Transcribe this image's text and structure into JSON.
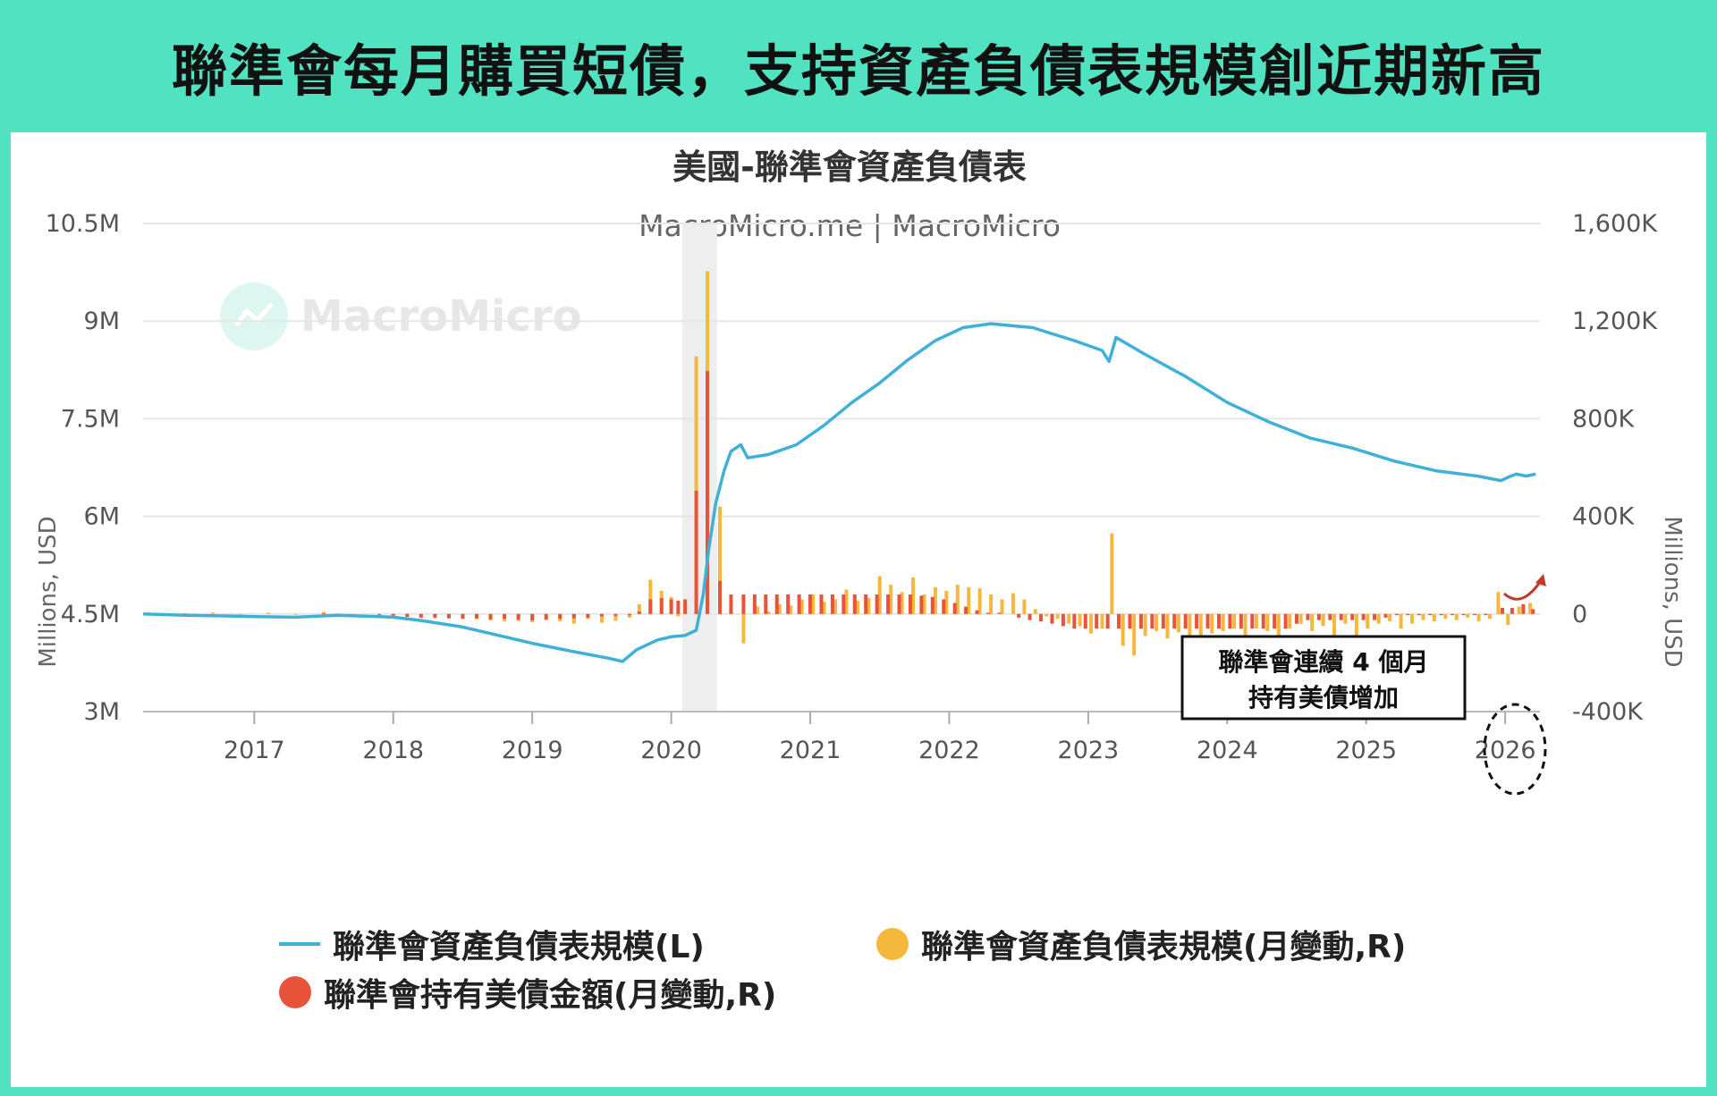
{
  "banner": {
    "title": "聯準會每月購買短債，支持資產負債表規模創近期新高"
  },
  "colors": {
    "banner_bg": "#51e3c1",
    "line": "#3fb0d8",
    "yellow": "#f5b83d",
    "red": "#e8533c",
    "recession": "#eeeeee",
    "grid": "#e6e6e6"
  },
  "watermark": "MacroMicro",
  "annotation": {
    "line1": "聯準會連續 4 個月",
    "line2": "持有美債增加"
  },
  "chart_data": {
    "type": "line+bar",
    "title": "美國-聯準會資產負債表",
    "subtitle": "MacroMicro.me | MacroMicro",
    "ylabel_left": "Millions, USD",
    "ylabel_right": "Millions, USD",
    "ylim_left": [
      3000000,
      10500000
    ],
    "ylim_right": [
      -400000,
      1600000
    ],
    "xlim": [
      2016.2,
      2026.25
    ],
    "left_ticks": [
      "3M",
      "4.5M",
      "6M",
      "7.5M",
      "9M",
      "10.5M"
    ],
    "right_ticks": [
      "-400K",
      "0",
      "400K",
      "800K",
      "1,200K",
      "1,600K"
    ],
    "x_ticks": [
      "2017",
      "2018",
      "2019",
      "2020",
      "2021",
      "2022",
      "2023",
      "2024",
      "2025",
      "2026"
    ],
    "grid": true,
    "legend_placement": "bottom",
    "recession_band": [
      2020.08,
      2020.33
    ],
    "series": [
      {
        "name": "聯準會資產負債表規模(L)",
        "kind": "line",
        "axis": "left",
        "points": [
          [
            2016.2,
            4500000
          ],
          [
            2016.5,
            4480000
          ],
          [
            2016.8,
            4470000
          ],
          [
            2017.0,
            4460000
          ],
          [
            2017.3,
            4450000
          ],
          [
            2017.6,
            4480000
          ],
          [
            2017.9,
            4460000
          ],
          [
            2018.0,
            4450000
          ],
          [
            2018.2,
            4400000
          ],
          [
            2018.5,
            4300000
          ],
          [
            2018.8,
            4150000
          ],
          [
            2019.0,
            4050000
          ],
          [
            2019.3,
            3920000
          ],
          [
            2019.55,
            3820000
          ],
          [
            2019.65,
            3770000
          ],
          [
            2019.75,
            3950000
          ],
          [
            2019.9,
            4100000
          ],
          [
            2020.0,
            4150000
          ],
          [
            2020.1,
            4170000
          ],
          [
            2020.18,
            4250000
          ],
          [
            2020.23,
            4800000
          ],
          [
            2020.27,
            5500000
          ],
          [
            2020.32,
            6200000
          ],
          [
            2020.38,
            6700000
          ],
          [
            2020.43,
            7000000
          ],
          [
            2020.5,
            7100000
          ],
          [
            2020.55,
            6900000
          ],
          [
            2020.7,
            6950000
          ],
          [
            2020.9,
            7100000
          ],
          [
            2021.1,
            7400000
          ],
          [
            2021.3,
            7750000
          ],
          [
            2021.5,
            8050000
          ],
          [
            2021.7,
            8400000
          ],
          [
            2021.9,
            8700000
          ],
          [
            2022.1,
            8900000
          ],
          [
            2022.3,
            8960000
          ],
          [
            2022.6,
            8900000
          ],
          [
            2022.9,
            8700000
          ],
          [
            2023.1,
            8550000
          ],
          [
            2023.15,
            8380000
          ],
          [
            2023.2,
            8750000
          ],
          [
            2023.4,
            8500000
          ],
          [
            2023.7,
            8150000
          ],
          [
            2024.0,
            7750000
          ],
          [
            2024.3,
            7450000
          ],
          [
            2024.6,
            7200000
          ],
          [
            2024.9,
            7050000
          ],
          [
            2025.2,
            6850000
          ],
          [
            2025.5,
            6700000
          ],
          [
            2025.8,
            6620000
          ],
          [
            2025.97,
            6550000
          ],
          [
            2026.02,
            6600000
          ],
          [
            2026.08,
            6650000
          ],
          [
            2026.15,
            6620000
          ],
          [
            2026.22,
            6650000
          ]
        ]
      },
      {
        "name": "聯準會資產負債表規模(月變動,R)",
        "kind": "bar",
        "axis": "right",
        "color": "#f5b83d",
        "points": [
          [
            2016.3,
            5000
          ],
          [
            2016.5,
            -5000
          ],
          [
            2016.7,
            6000
          ],
          [
            2016.9,
            -4000
          ],
          [
            2017.1,
            5000
          ],
          [
            2017.3,
            -3000
          ],
          [
            2017.5,
            8000
          ],
          [
            2017.7,
            -4000
          ],
          [
            2017.9,
            -6000
          ],
          [
            2018.0,
            -8000
          ],
          [
            2018.1,
            -10000
          ],
          [
            2018.2,
            -14000
          ],
          [
            2018.3,
            -18000
          ],
          [
            2018.4,
            -16000
          ],
          [
            2018.5,
            -20000
          ],
          [
            2018.6,
            -22000
          ],
          [
            2018.7,
            -26000
          ],
          [
            2018.8,
            -30000
          ],
          [
            2018.9,
            -28000
          ],
          [
            2019.0,
            -34000
          ],
          [
            2019.1,
            -26000
          ],
          [
            2019.2,
            -30000
          ],
          [
            2019.3,
            -40000
          ],
          [
            2019.4,
            -20000
          ],
          [
            2019.5,
            -36000
          ],
          [
            2019.6,
            -28000
          ],
          [
            2019.7,
            -15000
          ],
          [
            2019.77,
            40000
          ],
          [
            2019.85,
            140000
          ],
          [
            2019.93,
            95000
          ],
          [
            2020.0,
            70000
          ],
          [
            2020.05,
            -10000
          ],
          [
            2020.1,
            40000
          ],
          [
            2020.18,
            1055000
          ],
          [
            2020.26,
            1405000
          ],
          [
            2020.35,
            440000
          ],
          [
            2020.43,
            30000
          ],
          [
            2020.52,
            -120000
          ],
          [
            2020.62,
            30000
          ],
          [
            2020.7,
            10000
          ],
          [
            2020.78,
            40000
          ],
          [
            2020.86,
            35000
          ],
          [
            2020.94,
            60000
          ],
          [
            2021.02,
            80000
          ],
          [
            2021.1,
            50000
          ],
          [
            2021.18,
            60000
          ],
          [
            2021.26,
            100000
          ],
          [
            2021.34,
            55000
          ],
          [
            2021.42,
            65000
          ],
          [
            2021.5,
            155000
          ],
          [
            2021.58,
            120000
          ],
          [
            2021.66,
            90000
          ],
          [
            2021.74,
            150000
          ],
          [
            2021.82,
            80000
          ],
          [
            2021.9,
            110000
          ],
          [
            2021.98,
            95000
          ],
          [
            2022.06,
            120000
          ],
          [
            2022.14,
            110000
          ],
          [
            2022.22,
            105000
          ],
          [
            2022.3,
            80000
          ],
          [
            2022.38,
            60000
          ],
          [
            2022.46,
            85000
          ],
          [
            2022.54,
            60000
          ],
          [
            2022.62,
            20000
          ],
          [
            2022.7,
            -10000
          ],
          [
            2022.78,
            -20000
          ],
          [
            2022.86,
            -40000
          ],
          [
            2022.94,
            -50000
          ],
          [
            2023.02,
            -80000
          ],
          [
            2023.1,
            -60000
          ],
          [
            2023.17,
            330000
          ],
          [
            2023.25,
            -130000
          ],
          [
            2023.33,
            -170000
          ],
          [
            2023.41,
            -90000
          ],
          [
            2023.49,
            -70000
          ],
          [
            2023.57,
            -100000
          ],
          [
            2023.65,
            -75000
          ],
          [
            2023.73,
            -90000
          ],
          [
            2023.81,
            -110000
          ],
          [
            2023.89,
            -80000
          ],
          [
            2023.97,
            -70000
          ],
          [
            2024.05,
            -60000
          ],
          [
            2024.13,
            -90000
          ],
          [
            2024.21,
            -60000
          ],
          [
            2024.29,
            -70000
          ],
          [
            2024.37,
            -110000
          ],
          [
            2024.45,
            -60000
          ],
          [
            2024.53,
            -40000
          ],
          [
            2024.61,
            -70000
          ],
          [
            2024.69,
            -50000
          ],
          [
            2024.77,
            -90000
          ],
          [
            2024.85,
            -40000
          ],
          [
            2024.93,
            -110000
          ],
          [
            2025.01,
            -60000
          ],
          [
            2025.09,
            -40000
          ],
          [
            2025.17,
            -30000
          ],
          [
            2025.25,
            -60000
          ],
          [
            2025.33,
            -40000
          ],
          [
            2025.41,
            -25000
          ],
          [
            2025.49,
            -30000
          ],
          [
            2025.57,
            -20000
          ],
          [
            2025.65,
            -25000
          ],
          [
            2025.73,
            -15000
          ],
          [
            2025.81,
            -30000
          ],
          [
            2025.89,
            -20000
          ],
          [
            2025.95,
            90000
          ],
          [
            2026.02,
            -45000
          ],
          [
            2026.1,
            30000
          ],
          [
            2026.18,
            45000
          ]
        ]
      },
      {
        "name": "聯準會持有美債金額(月變動,R)",
        "kind": "bar",
        "axis": "right",
        "color": "#e8533c",
        "points": [
          [
            2016.5,
            2000
          ],
          [
            2017.5,
            2000
          ],
          [
            2017.9,
            -3000
          ],
          [
            2018.0,
            -6000
          ],
          [
            2018.1,
            -12000
          ],
          [
            2018.2,
            -15000
          ],
          [
            2018.3,
            -14000
          ],
          [
            2018.4,
            -18000
          ],
          [
            2018.5,
            -20000
          ],
          [
            2018.6,
            -18000
          ],
          [
            2018.7,
            -22000
          ],
          [
            2018.8,
            -20000
          ],
          [
            2018.9,
            -24000
          ],
          [
            2019.0,
            -26000
          ],
          [
            2019.1,
            -22000
          ],
          [
            2019.2,
            -20000
          ],
          [
            2019.3,
            -18000
          ],
          [
            2019.4,
            -15000
          ],
          [
            2019.5,
            -10000
          ],
          [
            2019.6,
            -8000
          ],
          [
            2019.7,
            -5000
          ],
          [
            2019.77,
            10000
          ],
          [
            2019.85,
            60000
          ],
          [
            2019.93,
            65000
          ],
          [
            2020.0,
            60000
          ],
          [
            2020.05,
            55000
          ],
          [
            2020.1,
            60000
          ],
          [
            2020.18,
            505000
          ],
          [
            2020.26,
            995000
          ],
          [
            2020.35,
            135000
          ],
          [
            2020.43,
            80000
          ],
          [
            2020.52,
            80000
          ],
          [
            2020.6,
            80000
          ],
          [
            2020.68,
            80000
          ],
          [
            2020.76,
            80000
          ],
          [
            2020.84,
            80000
          ],
          [
            2020.92,
            80000
          ],
          [
            2021.0,
            80000
          ],
          [
            2021.08,
            80000
          ],
          [
            2021.16,
            80000
          ],
          [
            2021.24,
            80000
          ],
          [
            2021.32,
            80000
          ],
          [
            2021.4,
            80000
          ],
          [
            2021.48,
            80000
          ],
          [
            2021.56,
            80000
          ],
          [
            2021.64,
            80000
          ],
          [
            2021.72,
            80000
          ],
          [
            2021.8,
            75000
          ],
          [
            2021.88,
            70000
          ],
          [
            2021.96,
            60000
          ],
          [
            2022.04,
            45000
          ],
          [
            2022.12,
            30000
          ],
          [
            2022.2,
            15000
          ],
          [
            2022.28,
            5000
          ],
          [
            2022.36,
            5000
          ],
          [
            2022.5,
            -15000
          ],
          [
            2022.58,
            -25000
          ],
          [
            2022.66,
            -30000
          ],
          [
            2022.74,
            -40000
          ],
          [
            2022.82,
            -50000
          ],
          [
            2022.9,
            -60000
          ],
          [
            2022.98,
            -60000
          ],
          [
            2023.06,
            -60000
          ],
          [
            2023.14,
            -60000
          ],
          [
            2023.22,
            -60000
          ],
          [
            2023.3,
            -60000
          ],
          [
            2023.38,
            -60000
          ],
          [
            2023.46,
            -60000
          ],
          [
            2023.54,
            -60000
          ],
          [
            2023.62,
            -60000
          ],
          [
            2023.7,
            -60000
          ],
          [
            2023.78,
            -60000
          ],
          [
            2023.86,
            -60000
          ],
          [
            2023.94,
            -60000
          ],
          [
            2024.02,
            -60000
          ],
          [
            2024.1,
            -60000
          ],
          [
            2024.18,
            -60000
          ],
          [
            2024.26,
            -60000
          ],
          [
            2024.34,
            -60000
          ],
          [
            2024.42,
            -60000
          ],
          [
            2024.5,
            -40000
          ],
          [
            2024.58,
            -25000
          ],
          [
            2024.66,
            -25000
          ],
          [
            2024.74,
            -25000
          ],
          [
            2024.82,
            -25000
          ],
          [
            2024.9,
            -25000
          ],
          [
            2024.98,
            -25000
          ],
          [
            2025.06,
            -25000
          ],
          [
            2025.14,
            -15000
          ],
          [
            2025.22,
            -5000
          ],
          [
            2025.3,
            -5000
          ],
          [
            2025.38,
            -5000
          ],
          [
            2025.46,
            -5000
          ],
          [
            2025.54,
            -5000
          ],
          [
            2025.62,
            -5000
          ],
          [
            2025.7,
            -5000
          ],
          [
            2025.78,
            -5000
          ],
          [
            2025.86,
            -5000
          ],
          [
            2025.98,
            25000
          ],
          [
            2026.05,
            25000
          ],
          [
            2026.13,
            40000
          ],
          [
            2026.2,
            20000
          ]
        ]
      }
    ]
  }
}
